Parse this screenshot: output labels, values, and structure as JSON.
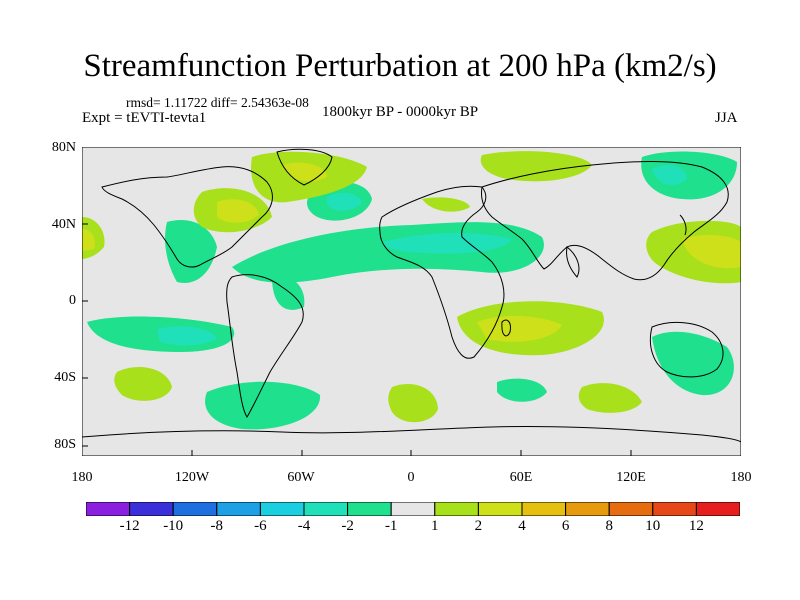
{
  "title": "Streamfunction Perturbation at 200 hPa (km2/s)",
  "stats": "rmsd= 1.11722  diff= 2.54363e-08",
  "left_label": "Expt = tEVTI-tevta1",
  "center_label": "1800kyr BP - 0000kyr BP",
  "right_label": "JJA",
  "y_ticks": [
    "80N",
    "40N",
    "0",
    "40S",
    "80S"
  ],
  "x_ticks": [
    "180",
    "120W",
    "60W",
    "0",
    "60E",
    "120E",
    "180"
  ],
  "colorbar": {
    "labels": [
      "-12",
      "-10",
      "-8",
      "-6",
      "-4",
      "-2",
      "-1",
      "1",
      "2",
      "4",
      "6",
      "8",
      "10",
      "12"
    ],
    "colors": [
      "#8a1fe0",
      "#3a2fd8",
      "#1f6fe0",
      "#1ea0e6",
      "#1ccfe0",
      "#1fe0b8",
      "#1fe08c",
      "#e6e6e6",
      "#a8e01c",
      "#cde01a",
      "#e6c010",
      "#e69a10",
      "#e66c10",
      "#e6481a",
      "#e61e1e"
    ]
  },
  "chart_data": {
    "type": "heatmap",
    "title": "Streamfunction Perturbation at 200 hPa (km2/s)",
    "lon_range": [
      -180,
      180
    ],
    "lat_range": [
      -90,
      90
    ],
    "levels": [
      -12,
      -10,
      -8,
      -6,
      -4,
      -2,
      -1,
      1,
      2,
      4,
      6,
      8,
      10,
      12
    ],
    "regions": [
      {
        "name": "north-pacific-east-positive",
        "lon": -170,
        "lat": 30,
        "value": 4
      },
      {
        "name": "north-america-positive",
        "lon": -95,
        "lat": 52,
        "value": 4
      },
      {
        "name": "greenland-positive",
        "lon": -60,
        "lat": 78,
        "value": 4
      },
      {
        "name": "north-atlantic-negative",
        "lon": -20,
        "lat": 45,
        "value": -2
      },
      {
        "name": "europe-positive",
        "lon": 10,
        "lat": 45,
        "value": 2
      },
      {
        "name": "eurasia-north-positive",
        "lon": 70,
        "lat": 75,
        "value": 2
      },
      {
        "name": "siberia-negative",
        "lon": 140,
        "lat": 60,
        "value": -4
      },
      {
        "name": "north-pacific-west-positive",
        "lon": 150,
        "lat": 25,
        "value": 4
      },
      {
        "name": "tropical-atlantic-africa-negative",
        "lon": 0,
        "lat": 15,
        "value": -4
      },
      {
        "name": "tropical-pacific-negative",
        "lon": -115,
        "lat": -18,
        "value": -4
      },
      {
        "name": "south-indian-ocean-positive",
        "lon": 65,
        "lat": -15,
        "value": 4
      },
      {
        "name": "australia-negative",
        "lon": 150,
        "lat": -30,
        "value": -2
      },
      {
        "name": "south-pacific-positive",
        "lon": -130,
        "lat": -45,
        "value": 2
      },
      {
        "name": "south-atlantic-negative",
        "lon": -60,
        "lat": -55,
        "value": -2
      },
      {
        "name": "southern-ocean-positive",
        "lon": 0,
        "lat": -60,
        "value": 2
      },
      {
        "name": "southern-indian-negative",
        "lon": 50,
        "lat": -50,
        "value": -2
      },
      {
        "name": "southern-pacific-west-positive",
        "lon": 105,
        "lat": -55,
        "value": 2
      }
    ]
  }
}
